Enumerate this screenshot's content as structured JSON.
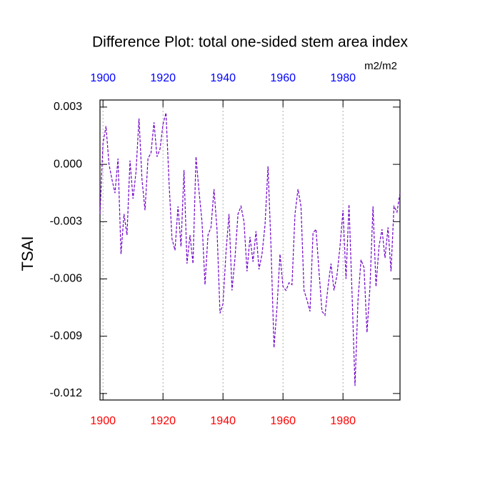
{
  "chart_data": {
    "type": "line",
    "title": "Difference Plot: total one-sided stem area index",
    "y_label": "TSAI",
    "units": "m2/m2",
    "x": [
      1899,
      1900,
      1901,
      1902,
      1903,
      1904,
      1905,
      1906,
      1907,
      1908,
      1909,
      1910,
      1911,
      1912,
      1913,
      1914,
      1915,
      1916,
      1917,
      1918,
      1919,
      1920,
      1921,
      1922,
      1923,
      1924,
      1925,
      1926,
      1927,
      1928,
      1929,
      1930,
      1931,
      1932,
      1933,
      1934,
      1935,
      1936,
      1937,
      1938,
      1939,
      1940,
      1941,
      1942,
      1943,
      1944,
      1945,
      1946,
      1947,
      1948,
      1949,
      1950,
      1951,
      1952,
      1953,
      1954,
      1955,
      1956,
      1957,
      1958,
      1959,
      1960,
      1961,
      1962,
      1963,
      1964,
      1965,
      1966,
      1967,
      1968,
      1969,
      1970,
      1971,
      1972,
      1973,
      1974,
      1975,
      1976,
      1977,
      1978,
      1979,
      1980,
      1981,
      1982,
      1983,
      1984,
      1985,
      1986,
      1987,
      1988,
      1989,
      1990,
      1991,
      1992,
      1993,
      1994,
      1995,
      1996,
      1997,
      1998,
      1999
    ],
    "series": [
      {
        "color": "#7000c8",
        "dashed": true,
        "values": [
          -0.0026,
          0.0011,
          0.002,
          0.0,
          -0.0008,
          -0.0015,
          0.0003,
          -0.0047,
          -0.0026,
          -0.0037,
          0.0002,
          -0.0018,
          -0.0004,
          0.0024,
          -0.0008,
          -0.0024,
          0.0003,
          0.0006,
          0.0022,
          0.0004,
          0.0008,
          0.0021,
          0.0027,
          -0.0009,
          -0.0039,
          -0.0045,
          -0.0022,
          -0.0043,
          -0.0003,
          -0.0052,
          -0.0037,
          -0.0052,
          0.0004,
          -0.0014,
          -0.003,
          -0.0063,
          -0.0037,
          -0.0033,
          -0.0013,
          -0.0034,
          -0.0078,
          -0.0073,
          -0.0046,
          -0.0026,
          -0.0066,
          -0.0049,
          -0.0026,
          -0.0022,
          -0.003,
          -0.0056,
          -0.0038,
          -0.0051,
          -0.0035,
          -0.0055,
          -0.0047,
          -0.0032,
          -0.0001,
          -0.0043,
          -0.0096,
          -0.0075,
          -0.0047,
          -0.0064,
          -0.0066,
          -0.0062,
          -0.0063,
          -0.0026,
          -0.0013,
          -0.0022,
          -0.0066,
          -0.0071,
          -0.0077,
          -0.0036,
          -0.0034,
          -0.0056,
          -0.0077,
          -0.0079,
          -0.0064,
          -0.0052,
          -0.0066,
          -0.0058,
          -0.0043,
          -0.0024,
          -0.006,
          -0.0021,
          -0.0067,
          -0.0116,
          -0.0071,
          -0.005,
          -0.0054,
          -0.0088,
          -0.0064,
          -0.0022,
          -0.0064,
          -0.0043,
          -0.0034,
          -0.0049,
          -0.0033,
          -0.0056,
          -0.0022,
          -0.0025,
          -0.0015
        ]
      }
    ],
    "xlim": [
      1899,
      1999
    ],
    "xticks": [
      1900,
      1920,
      1940,
      1960,
      1980
    ],
    "ylim": [
      -0.01234,
      0.00337
    ],
    "yticks": [
      {
        "value": 0.003,
        "label": "0.003"
      },
      {
        "value": 0,
        "label": "0.000"
      },
      {
        "value": -0.003,
        "label": "-0.003"
      },
      {
        "value": -0.006,
        "label": "-0.006"
      },
      {
        "value": -0.009,
        "label": "-0.009"
      },
      {
        "value": -0.012,
        "label": "-0.012"
      }
    ],
    "top_tick_color": "#0000ff",
    "bottom_tick_color": "#ff0000",
    "grid": true
  }
}
